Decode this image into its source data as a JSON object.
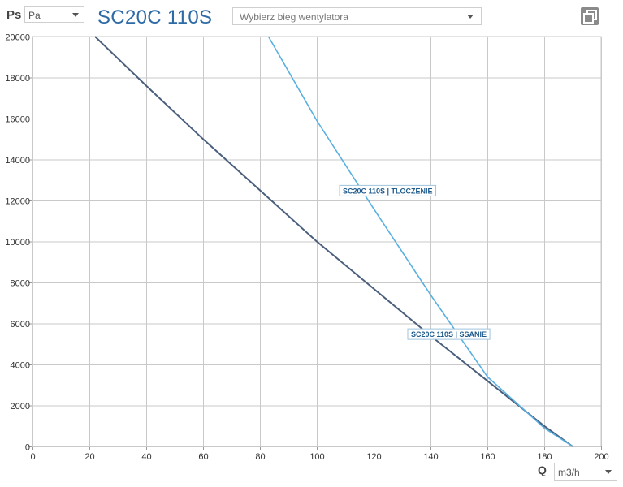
{
  "header": {
    "y_axis_symbol": "Ps",
    "unit_select": {
      "value": "Pa"
    },
    "title": "SC20C 110S",
    "fan_speed_select": {
      "placeholder": "Wybierz bieg wentylatora"
    }
  },
  "footer": {
    "x_axis_symbol": "Q",
    "unit_select": {
      "value": "m3/h"
    }
  },
  "chart_data": {
    "type": "line",
    "title": "SC20C 110S",
    "xlabel": "Q",
    "ylabel": "Ps",
    "xlim": [
      0,
      200
    ],
    "ylim": [
      0,
      20000
    ],
    "x_ticks": [
      0,
      20,
      40,
      60,
      80,
      100,
      120,
      140,
      160,
      180,
      200
    ],
    "y_ticks": [
      0,
      2000,
      4000,
      6000,
      8000,
      10000,
      12000,
      14000,
      16000,
      18000,
      20000
    ],
    "grid": true,
    "series": [
      {
        "name": "SC20C 110S | SSANIE",
        "color": "#4b5f7d",
        "x": [
          22,
          40,
          60,
          80,
          100,
          120,
          140,
          160,
          180,
          190
        ],
        "y": [
          20000,
          17600,
          15000,
          12500,
          10000,
          7700,
          5400,
          3200,
          1000,
          0
        ]
      },
      {
        "name": "SC20C 110S | TLOCZENIE",
        "color": "#58b0e0",
        "x": [
          83,
          100,
          120,
          140,
          160,
          180,
          190
        ],
        "y": [
          20000,
          15900,
          11600,
          7400,
          3400,
          900,
          0
        ]
      }
    ],
    "annotations": [
      {
        "text": "SC20C 110S | TLOCZENIE",
        "series": 1,
        "x": 108,
        "y": 12500
      },
      {
        "text": "SC20C 110S | SSANIE",
        "series": 0,
        "x": 132,
        "y": 5500
      }
    ]
  }
}
